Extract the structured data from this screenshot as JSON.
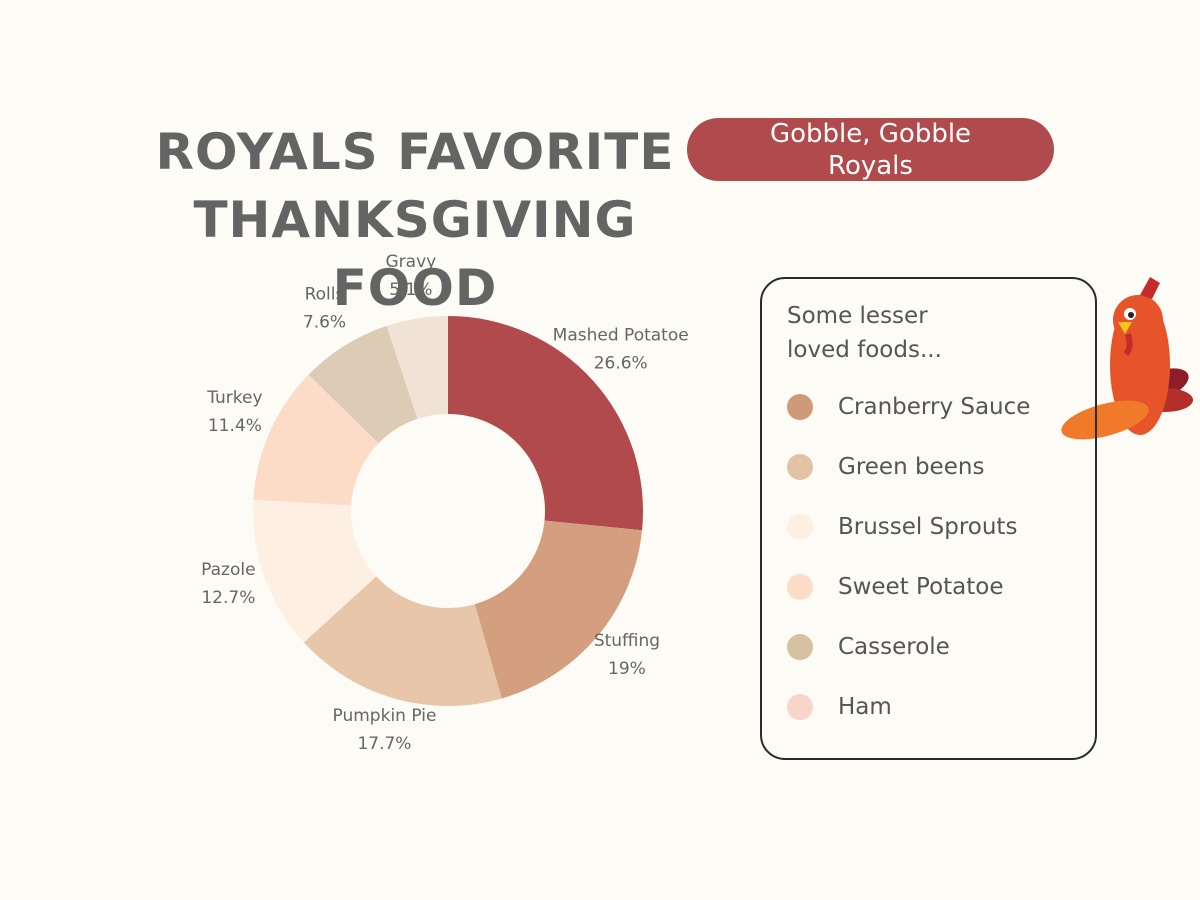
{
  "chart_data": {
    "type": "pie",
    "title": "ROYALS FAVORITE THANKSGIVING FOOD",
    "categories": [
      "Mashed Potatoe",
      "Stuffing",
      "Pumpkin Pie",
      "Pazole",
      "Turkey",
      "Rolls",
      "Gravy"
    ],
    "values": [
      26.6,
      19,
      17.7,
      12.7,
      11.4,
      7.6,
      5.1
    ],
    "value_labels": [
      "26.6%",
      "19%",
      "17.7%",
      "12.7%",
      "11.4%",
      "7.6%",
      "5.1%"
    ],
    "colors": [
      "#b04a4c",
      "#d49f7e",
      "#e8c6aa",
      "#fdf0e3",
      "#fcdcc6",
      "#ddccb5",
      "#f0e3d6"
    ],
    "donut": true
  },
  "badge": {
    "text": "Gobble, Gobble Royals"
  },
  "side_list": {
    "title": "Some lesser loved foods...",
    "items": [
      {
        "label": "Cranberry Sauce",
        "color": "#cf9a78"
      },
      {
        "label": "Green beens",
        "color": "#e3c3a5"
      },
      {
        "label": "Brussel Sprouts",
        "color": "#fdf0e3"
      },
      {
        "label": "Sweet Potatoe",
        "color": "#fcdcc6"
      },
      {
        "label": "Casserole",
        "color": "#d4c2a0"
      },
      {
        "label": "Ham",
        "color": "#f9d5c9"
      }
    ]
  }
}
